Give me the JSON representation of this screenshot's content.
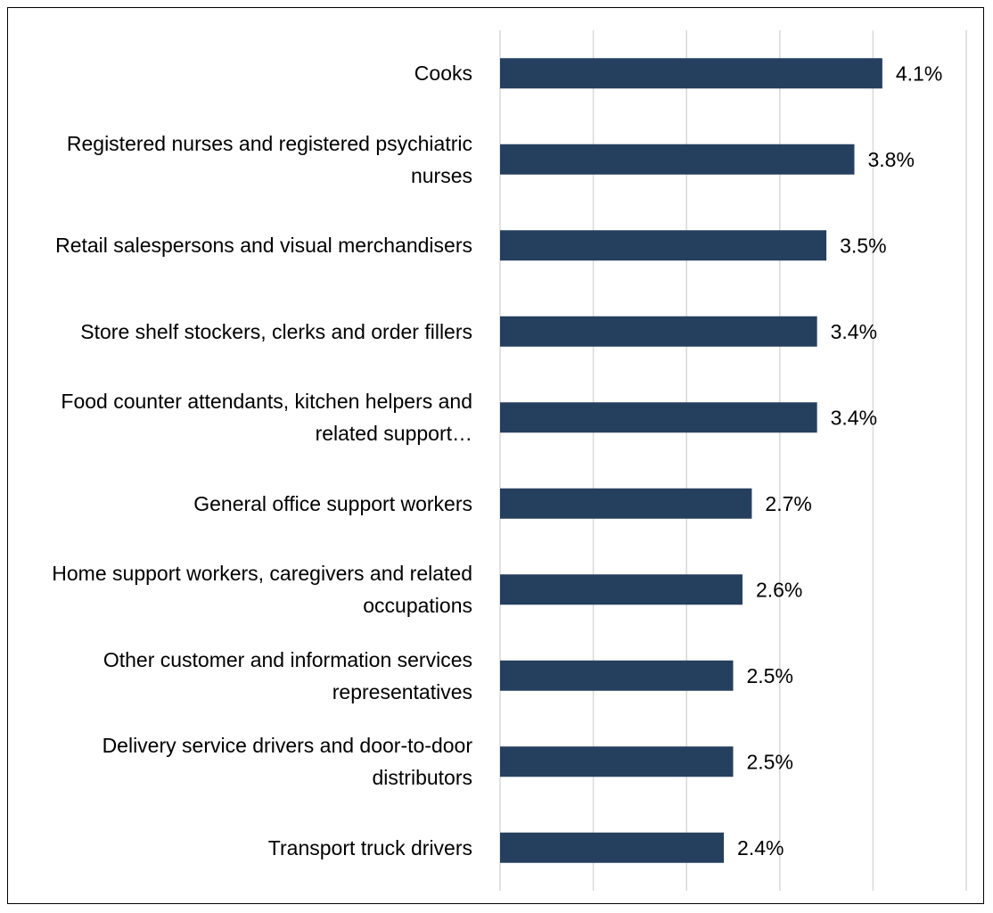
{
  "chart_data": {
    "type": "bar",
    "orientation": "horizontal",
    "categories": [
      "Cooks",
      "Registered nurses and registered psychiatric nurses",
      "Retail salespersons and visual merchandisers",
      "Store shelf stockers, clerks and order fillers",
      "Food counter attendants, kitchen helpers and related support…",
      "General office support workers",
      "Home support workers, caregivers and related occupations",
      "Other customer and information services representatives",
      "Delivery service drivers and door-to-door distributors",
      "Transport truck drivers"
    ],
    "values": [
      4.1,
      3.8,
      3.5,
      3.4,
      3.4,
      2.7,
      2.6,
      2.5,
      2.5,
      2.4
    ],
    "value_labels": [
      "4.1%",
      "3.8%",
      "3.5%",
      "3.4%",
      "3.4%",
      "2.7%",
      "2.6%",
      "2.5%",
      "2.5%",
      "2.4%"
    ],
    "color": "#253f5f",
    "xlim": [
      0,
      5
    ],
    "xticks": [
      0,
      1,
      2,
      3,
      4,
      5
    ],
    "grid": true
  }
}
